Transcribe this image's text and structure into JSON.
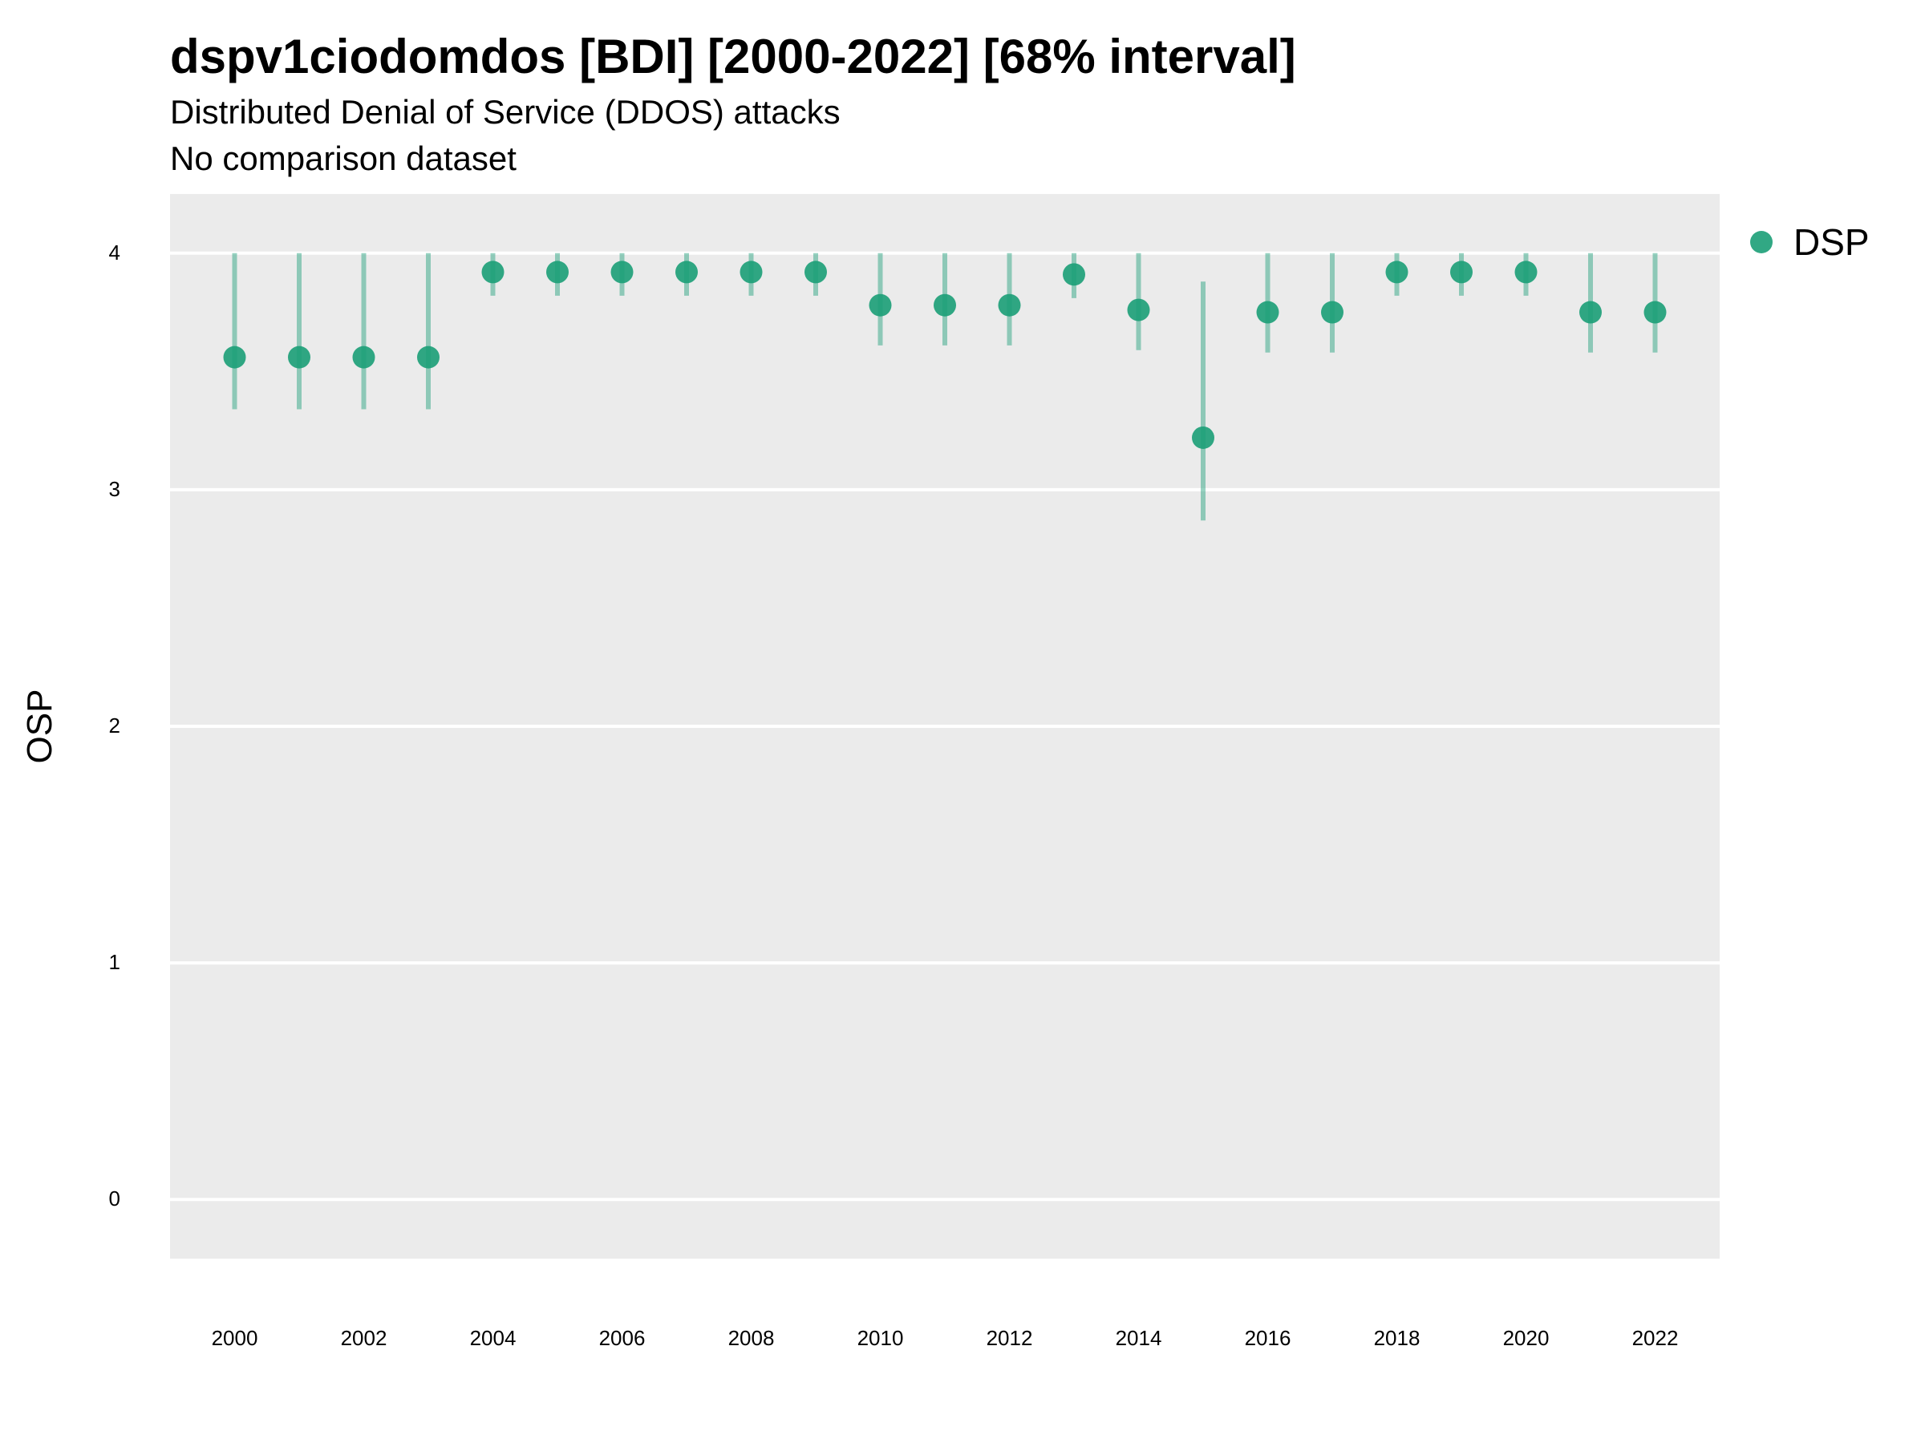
{
  "chart_data": {
    "type": "scatter",
    "title": "dspv1ciodomdos [BDI] [2000-2022] [68% interval]",
    "subtitle": "Distributed Denial of Service (DDOS) attacks",
    "caption": "No comparison dataset",
    "xlabel": "",
    "ylabel": "OSP",
    "ylim": [
      -0.25,
      4.25
    ],
    "xlim": [
      1999,
      2023
    ],
    "y_ticks": [
      0,
      1,
      2,
      3,
      4
    ],
    "x_ticks": [
      2000,
      2002,
      2004,
      2006,
      2008,
      2010,
      2012,
      2014,
      2016,
      2018,
      2020,
      2022
    ],
    "grid": true,
    "legend_position": "right",
    "colors": {
      "series": "#1b9e77",
      "panel": "#ebebeb",
      "grid": "#ffffff"
    },
    "series": [
      {
        "name": "DSP",
        "x": [
          2000,
          2001,
          2002,
          2003,
          2004,
          2005,
          2006,
          2007,
          2008,
          2009,
          2010,
          2011,
          2012,
          2013,
          2014,
          2015,
          2016,
          2017,
          2018,
          2019,
          2020,
          2021,
          2022
        ],
        "y": [
          3.56,
          3.56,
          3.56,
          3.56,
          3.92,
          3.92,
          3.92,
          3.92,
          3.92,
          3.92,
          3.78,
          3.78,
          3.78,
          3.91,
          3.76,
          3.22,
          3.75,
          3.75,
          3.92,
          3.92,
          3.92,
          3.75,
          3.75
        ],
        "lower": [
          3.34,
          3.34,
          3.34,
          3.34,
          3.82,
          3.82,
          3.82,
          3.82,
          3.82,
          3.82,
          3.61,
          3.61,
          3.61,
          3.81,
          3.59,
          2.87,
          3.58,
          3.58,
          3.82,
          3.82,
          3.82,
          3.58,
          3.58
        ],
        "upper": [
          4.0,
          4.0,
          4.0,
          4.0,
          4.0,
          4.0,
          4.0,
          4.0,
          4.0,
          4.0,
          4.0,
          4.0,
          4.0,
          4.0,
          4.0,
          3.88,
          4.0,
          4.0,
          4.0,
          4.0,
          4.0,
          4.0,
          4.0
        ]
      }
    ]
  }
}
